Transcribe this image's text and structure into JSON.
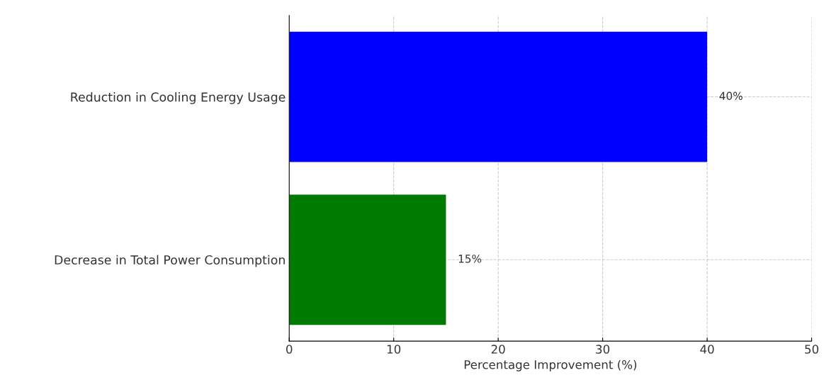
{
  "chart_data": {
    "type": "bar",
    "orientation": "horizontal",
    "categories": [
      "Reduction in Cooling Energy Usage",
      "Decrease in Total Power Consumption"
    ],
    "values": [
      40,
      15
    ],
    "colors": [
      "#0000ff",
      "#007a00"
    ],
    "value_labels": [
      "40%",
      "15%"
    ],
    "xlabel": "Percentage Improvement (%)",
    "xlim": [
      0,
      50
    ],
    "xticks": [
      0,
      10,
      20,
      30,
      40,
      50
    ],
    "grid": true
  }
}
